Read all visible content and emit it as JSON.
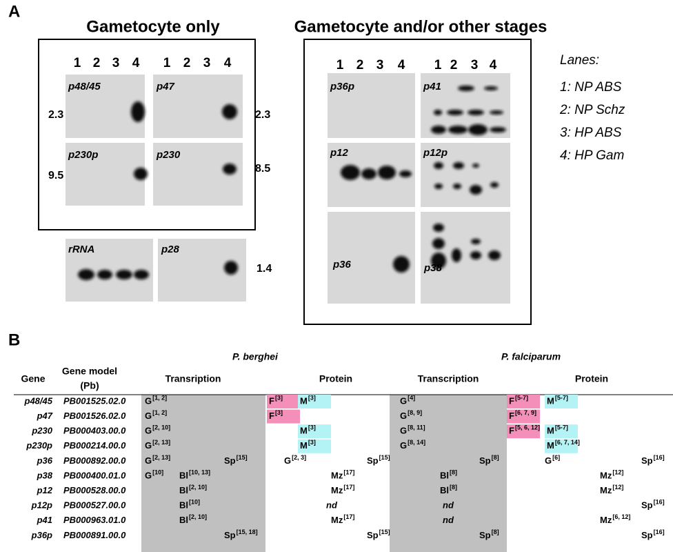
{
  "panel_a": {
    "label": "A",
    "heading_left": "Gametocyte only",
    "heading_right": "Gametocyte and/or other stages",
    "lane_numbers": [
      "1",
      "2",
      "3",
      "4"
    ],
    "blots": [
      {
        "label": "p48/45",
        "size": 2.3
      },
      {
        "label": "p47",
        "size": 2.3
      },
      {
        "label": "p230p",
        "size": 9.5
      },
      {
        "label": "p230",
        "size": 8.5
      },
      {
        "label": "rRNA"
      },
      {
        "label": "p28",
        "size": 1.4
      },
      {
        "label": "p36p"
      },
      {
        "label": "p41"
      },
      {
        "label": "p12"
      },
      {
        "label": "p12p"
      },
      {
        "label": "p36"
      },
      {
        "label": "p38"
      }
    ],
    "legend": {
      "title": "Lanes:",
      "items": [
        "1: NP ABS",
        "2: NP Schz",
        "3: HP ABS",
        "4: HP Gam"
      ]
    }
  },
  "panel_b": {
    "label": "B",
    "species": [
      "P. berghei",
      "P. falciparum"
    ],
    "headers": {
      "gene": "Gene",
      "model": [
        "Gene model",
        "(Pb)"
      ],
      "sections": [
        "Transription",
        "Protein",
        "Transcription",
        "Protein"
      ]
    },
    "rows": [
      {
        "gene": "p48/45",
        "model": "PB001525.02.0",
        "cells": [
          [
            {
              "stage": "G",
              "ref": "[1, 2]"
            }
          ],
          [
            {
              "stage": "F",
              "ref": "[3]"
            },
            {
              "stage": "M",
              "ref": "[3]"
            }
          ],
          [
            {
              "stage": "G",
              "ref": "[4]"
            }
          ],
          [
            {
              "stage": "F",
              "ref": "[5-7]"
            },
            {
              "stage": "M",
              "ref": "[5-7]"
            }
          ]
        ]
      },
      {
        "gene": "p47",
        "model": "PB001526.02.0",
        "cells": [
          [
            {
              "stage": "G",
              "ref": "[1, 2]"
            }
          ],
          [
            {
              "stage": "F",
              "ref": "[3]"
            }
          ],
          [
            {
              "stage": "G",
              "ref": "[8, 9]"
            }
          ],
          [
            {
              "stage": "F",
              "ref": "[6, 7, 9]"
            }
          ]
        ]
      },
      {
        "gene": "p230",
        "model": "PB000403.00.0",
        "cells": [
          [
            {
              "stage": "G",
              "ref": "[2, 10]"
            }
          ],
          [
            {
              "stage": "M",
              "ref": "[3]"
            }
          ],
          [
            {
              "stage": "G",
              "ref": "[8, 11]"
            }
          ],
          [
            {
              "stage": "F",
              "ref": "[5, 6, 12]"
            },
            {
              "stage": "M",
              "ref": "[5-7]"
            }
          ]
        ]
      },
      {
        "gene": "p230p",
        "model": "PB000214.00.0",
        "cells": [
          [
            {
              "stage": "G",
              "ref": "[2, 13]"
            }
          ],
          [
            {
              "stage": "M",
              "ref": "[3]"
            }
          ],
          [
            {
              "stage": "G",
              "ref": "[8, 14]"
            }
          ],
          [
            {
              "stage": "M",
              "ref": "[6, 7, 14]"
            }
          ]
        ]
      },
      {
        "gene": "p36",
        "model": "PB000892.00.0",
        "cells": [
          [
            {
              "stage": "G",
              "ref": "[2, 13]"
            },
            {
              "stage": "Sp",
              "ref": "[15]"
            }
          ],
          [
            {
              "stage": "G",
              "ref": "[2, 3]"
            },
            {
              "stage": "Sp",
              "ref": "[15]"
            }
          ],
          [
            {
              "stage": "Sp",
              "ref": "[8]"
            }
          ],
          [
            {
              "stage": "G",
              "ref": "[6]"
            },
            {
              "stage": "Sp",
              "ref": "[16]"
            }
          ]
        ]
      },
      {
        "gene": "p38",
        "model": "PB000400.01.0",
        "cells": [
          [
            {
              "stage": "G",
              "ref": "[10]"
            },
            {
              "stage": "Bl",
              "ref": "[10, 13]"
            }
          ],
          [
            {
              "stage": "Mz",
              "ref": "[17]"
            }
          ],
          [
            {
              "stage": "Bl",
              "ref": "[8]"
            }
          ],
          [
            {
              "stage": "Mz",
              "ref": "[12]"
            }
          ]
        ]
      },
      {
        "gene": "p12",
        "model": "PB000528.00.0",
        "cells": [
          [
            {
              "stage": "Bl",
              "ref": "[2, 10]"
            }
          ],
          [
            {
              "stage": "Mz",
              "ref": "[17]"
            }
          ],
          [
            {
              "stage": "Bl",
              "ref": "[8]"
            }
          ],
          [
            {
              "stage": "Mz",
              "ref": "[12]"
            }
          ]
        ]
      },
      {
        "gene": "p12p",
        "model": "PB000527.00.0",
        "cells": [
          [
            {
              "stage": "Bl",
              "ref": "[10]"
            }
          ],
          [
            {
              "stage": "nd"
            }
          ],
          [
            {
              "stage": "nd"
            }
          ],
          [
            {
              "stage": "Sp",
              "ref": "[16]"
            }
          ]
        ]
      },
      {
        "gene": "p41",
        "model": "PB000963.01.0",
        "cells": [
          [
            {
              "stage": "Bl",
              "ref": "[2, 10]"
            }
          ],
          [
            {
              "stage": "Mz",
              "ref": "[17]"
            }
          ],
          [
            {
              "stage": "nd"
            }
          ],
          [
            {
              "stage": "Mz",
              "ref": "[6, 12]"
            }
          ]
        ]
      },
      {
        "gene": "p36p",
        "model": "PB000891.00.0",
        "cells": [
          [
            {
              "stage": "Sp",
              "ref": "[15, 18]"
            }
          ],
          [
            {
              "stage": "Sp",
              "ref": "[15]"
            }
          ],
          [
            {
              "stage": "Sp",
              "ref": "[8]"
            }
          ],
          [
            {
              "stage": "Sp",
              "ref": "[16]"
            }
          ]
        ]
      }
    ]
  }
}
